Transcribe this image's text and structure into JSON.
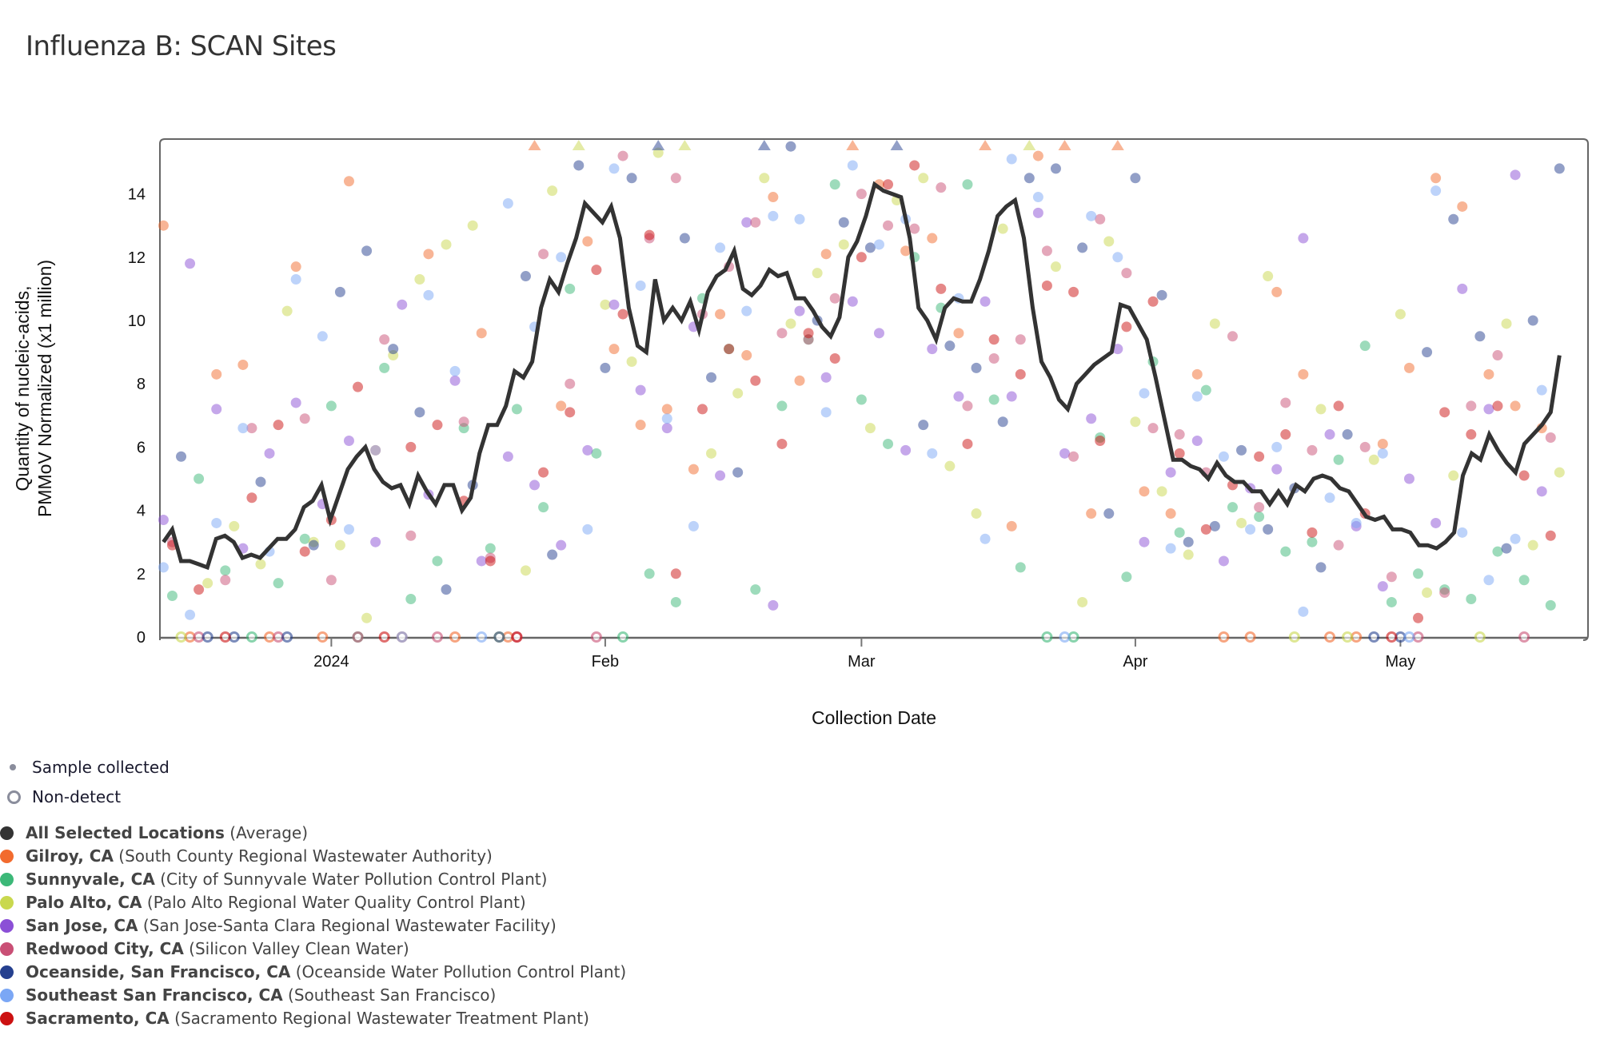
{
  "title": "Influenza B: SCAN Sites",
  "legend": {
    "sample_collected": "Sample collected",
    "non_detect": "Non-detect"
  },
  "chart_data": {
    "type": "scatter",
    "title": "Influenza B: SCAN Sites",
    "xlabel": "Collection Date",
    "ylabel_lines": [
      "Quantity of nucleic-acids,",
      "PMMoV Normalized (x1 million)"
    ],
    "ylim": [
      0,
      15.75
    ],
    "yticks": [
      "0",
      "2",
      "4",
      "6",
      "8",
      "10",
      "12",
      "14"
    ],
    "xticks": [
      {
        "label": "2024",
        "date": "2024-01-01"
      },
      {
        "label": "Feb",
        "date": "2024-02-01"
      },
      {
        "label": "Mar",
        "date": "2024-03-01"
      },
      {
        "label": "Apr",
        "date": "2024-04-01"
      },
      {
        "label": "May",
        "date": "2024-05-01"
      }
    ],
    "start_date": "2023-12-13",
    "end_date": "2024-05-19",
    "site_sample_interval_days": 3,
    "notes": {
      "zero_means": "non-detect",
      "above_ylim_shown_as": "triangle"
    },
    "average": {
      "name": "All Selected Locations",
      "desc": "(Average)",
      "color": "#333333",
      "values": [
        3.0,
        3.4,
        2.4,
        2.4,
        2.3,
        2.2,
        3.1,
        3.2,
        3.0,
        2.5,
        2.6,
        2.5,
        2.8,
        3.1,
        3.1,
        3.4,
        4.1,
        4.3,
        4.8,
        3.7,
        4.5,
        5.3,
        5.7,
        6.0,
        5.3,
        4.9,
        4.7,
        4.8,
        4.2,
        5.1,
        4.6,
        4.2,
        4.8,
        4.8,
        4.0,
        4.4,
        5.8,
        6.7,
        6.7,
        7.3,
        8.4,
        8.2,
        8.7,
        10.4,
        11.3,
        10.9,
        11.8,
        12.6,
        13.7,
        13.4,
        13.1,
        13.6,
        12.6,
        10.4,
        9.2,
        9.0,
        11.3,
        10.0,
        10.4,
        10.0,
        10.6,
        9.7,
        10.9,
        11.4,
        11.6,
        12.2,
        11.0,
        10.8,
        11.1,
        11.6,
        11.4,
        11.5,
        10.7,
        10.7,
        10.3,
        9.8,
        9.5,
        10.1,
        12.0,
        12.5,
        13.3,
        14.3,
        14.1,
        14.0,
        13.9,
        12.6,
        10.4,
        10.0,
        9.4,
        10.4,
        10.7,
        10.6,
        10.6,
        11.3,
        12.2,
        13.3,
        13.6,
        13.8,
        12.6,
        10.4,
        8.7,
        8.2,
        7.5,
        7.2,
        8.0,
        8.3,
        8.6,
        8.8,
        9.0,
        10.5,
        10.4,
        9.9,
        9.4,
        8.2,
        6.9,
        5.6,
        5.6,
        5.4,
        5.3,
        5.0,
        5.5,
        5.1,
        4.9,
        4.9,
        4.6,
        4.6,
        4.2,
        4.6,
        4.2,
        4.8,
        4.6,
        5.0,
        5.1,
        5.0,
        4.7,
        4.6,
        4.2,
        3.8,
        3.7,
        3.8,
        3.4,
        3.4,
        3.3,
        2.9,
        2.9,
        2.8,
        3.0,
        3.3,
        5.1,
        5.8,
        5.6,
        6.4,
        5.9,
        5.5,
        5.2,
        6.1,
        6.4,
        6.7,
        7.1,
        8.9
      ]
    },
    "series": [
      {
        "name": "Gilroy, CA",
        "desc": "(South County Regional Wastewater Authority)",
        "color": "#f26b2e",
        "values": [
          13,
          0,
          8.3,
          8.6,
          0,
          11.7,
          0,
          14.4,
          5.9,
          0,
          12.1,
          0,
          9.6,
          0,
          16,
          7.3,
          12.5,
          9.1,
          6.7,
          7.2,
          5.3,
          10.2,
          8.9,
          13.9,
          8.1,
          12.1,
          16,
          14.3,
          12.2,
          12.6,
          9.6,
          16,
          3.5,
          15.2,
          16,
          3.9,
          16,
          4.6,
          3.9,
          8.3,
          0,
          0,
          10.9,
          8.3,
          0,
          0,
          6.1,
          8.5,
          14.5,
          13.6,
          8.3,
          7.3,
          6.6
        ]
      },
      {
        "name": "Sunnyvale, CA",
        "desc": "(City of Sunnyvale Water Pollution Control Plant)",
        "color": "#3cb878",
        "values": [
          1.3,
          5.0,
          2.1,
          0,
          1.7,
          3.1,
          7.3,
          0,
          8.5,
          1.2,
          2.4,
          6.6,
          2.8,
          7.2,
          4.1,
          11.0,
          5.8,
          0,
          2.0,
          1.1,
          10.7,
          9.1,
          1.5,
          7.3,
          9.4,
          14.3,
          7.5,
          6.1,
          12.0,
          10.4,
          14.3,
          7.5,
          2.2,
          0,
          0,
          6.3,
          1.9,
          8.7,
          3.3,
          7.8,
          4.1,
          3.8,
          2.7,
          3.0,
          5.6,
          9.2,
          1.1,
          2.0,
          1.5,
          1.2,
          2.7,
          1.8,
          1.0
        ]
      },
      {
        "name": "Palo Alto, CA",
        "desc": "(Palo Alto Regional Water Quality Control Plant)",
        "color": "#c9d84e",
        "values": [
          0,
          1.7,
          3.5,
          2.3,
          10.3,
          3.0,
          2.9,
          0.6,
          8.9,
          11.3,
          12.4,
          13.0,
          0,
          2.1,
          14.1,
          16,
          10.5,
          8.7,
          15.3,
          16,
          5.8,
          7.7,
          14.5,
          9.9,
          11.5,
          12.4,
          6.6,
          13.8,
          14.5,
          5.4,
          3.9,
          12.9,
          16,
          11.7,
          1.1,
          12.5,
          6.8,
          4.6,
          2.6,
          9.9,
          3.6,
          11.4,
          0,
          7.2,
          0,
          5.6,
          10.2,
          1.4,
          5.1,
          0,
          9.9,
          2.9,
          5.2
        ]
      },
      {
        "name": "San Jose, CA",
        "desc": "(San Jose-Santa Clara Regional Wastewater Facility)",
        "color": "#8b4fd6",
        "values": [
          3.7,
          11.8,
          7.2,
          2.8,
          5.8,
          7.4,
          4.2,
          6.2,
          3.0,
          10.5,
          4.5,
          8.1,
          2.4,
          5.7,
          4.8,
          2.9,
          5.9,
          10.5,
          7.8,
          6.6,
          9.8,
          5.1,
          13.1,
          1.0,
          10.3,
          8.2,
          10.6,
          9.6,
          5.9,
          9.1,
          7.6,
          10.6,
          7.6,
          13.4,
          5.8,
          6.9,
          9.1,
          3.0,
          5.2,
          6.2,
          2.4,
          4.7,
          5.3,
          12.6,
          6.4,
          3.5,
          1.6,
          5.0,
          3.6,
          11.0,
          7.2,
          14.6,
          4.6
        ]
      },
      {
        "name": "Redwood City, CA",
        "desc": "(Silicon Valley Clean Water)",
        "color": "#c94f75",
        "values": [
          3.0,
          0,
          1.8,
          6.6,
          0,
          6.9,
          1.8,
          0,
          9.4,
          3.2,
          0,
          6.8,
          2.5,
          0,
          12.1,
          8.0,
          0,
          15.2,
          12.6,
          14.5,
          10.2,
          11.7,
          13.1,
          9.6,
          9.4,
          10.7,
          14.0,
          13.0,
          12.9,
          14.2,
          7.3,
          8.8,
          9.4,
          12.2,
          5.7,
          13.2,
          11.5,
          6.6,
          6.4,
          5.2,
          9.5,
          4.1,
          7.4,
          5.9,
          2.9,
          6.0,
          1.9,
          0,
          1.4,
          7.3,
          8.9,
          0,
          6.3
        ]
      },
      {
        "name": "Oceanside, San Francisco, CA",
        "desc": "(Oceanside Water Pollution Control Plant)",
        "color": "#25408f",
        "values": [
          5.7,
          0,
          0,
          4.9,
          0,
          2.9,
          10.9,
          12.2,
          9.1,
          7.1,
          1.5,
          4.8,
          0,
          11.4,
          2.6,
          14.9,
          8.5,
          14.5,
          16,
          12.6,
          8.2,
          5.2,
          16,
          15.5,
          10.0,
          13.1,
          12.3,
          16,
          6.7,
          9.2,
          8.5,
          6.8,
          14.5,
          14.8,
          12.3,
          3.9,
          14.5,
          10.8,
          3.0,
          3.5,
          5.9,
          3.4,
          4.7,
          2.2,
          6.4,
          0,
          0,
          9.0,
          13.2,
          9.5,
          2.8,
          10.0,
          14.8
        ]
      },
      {
        "name": "Southeast San Francisco, CA",
        "desc": "(Southeast San Francisco)",
        "color": "#7ba7f5",
        "values": [
          2.2,
          0.7,
          3.6,
          6.6,
          2.7,
          11.3,
          9.5,
          3.4,
          5.9,
          0,
          10.8,
          8.4,
          0,
          13.7,
          9.8,
          12.0,
          3.4,
          14.8,
          11.1,
          6.9,
          3.5,
          12.3,
          10.3,
          13.3,
          13.2,
          7.1,
          14.9,
          12.4,
          13.2,
          5.8,
          10.7,
          3.1,
          15.1,
          13.9,
          0,
          13.3,
          12.0,
          7.7,
          2.8,
          7.6,
          5.7,
          3.4,
          6.0,
          0.8,
          4.4,
          3.6,
          5.8,
          0,
          14.1,
          3.3,
          1.8,
          3.1,
          7.8
        ]
      },
      {
        "name": "Sacramento, CA",
        "desc": "(Sacramento Regional Wastewater Treatment Plant)",
        "color": "#cc1111",
        "values": [
          2.9,
          1.5,
          0,
          4.4,
          6.7,
          2.7,
          3.7,
          7.9,
          0,
          6.0,
          6.7,
          4.3,
          2.4,
          0,
          5.2,
          7.1,
          11.6,
          10.2,
          12.7,
          2.0,
          7.2,
          9.1,
          8.1,
          6.1,
          9.6,
          8.8,
          12.0,
          14.3,
          14.9,
          11.0,
          6.1,
          9.4,
          8.3,
          11.1,
          10.9,
          6.2,
          9.8,
          10.6,
          5.8,
          3.4,
          4.8,
          5.7,
          6.4,
          3.3,
          7.3,
          3.9,
          0,
          0.6,
          7.1,
          6.4,
          7.3,
          5.1,
          3.2
        ]
      }
    ]
  }
}
